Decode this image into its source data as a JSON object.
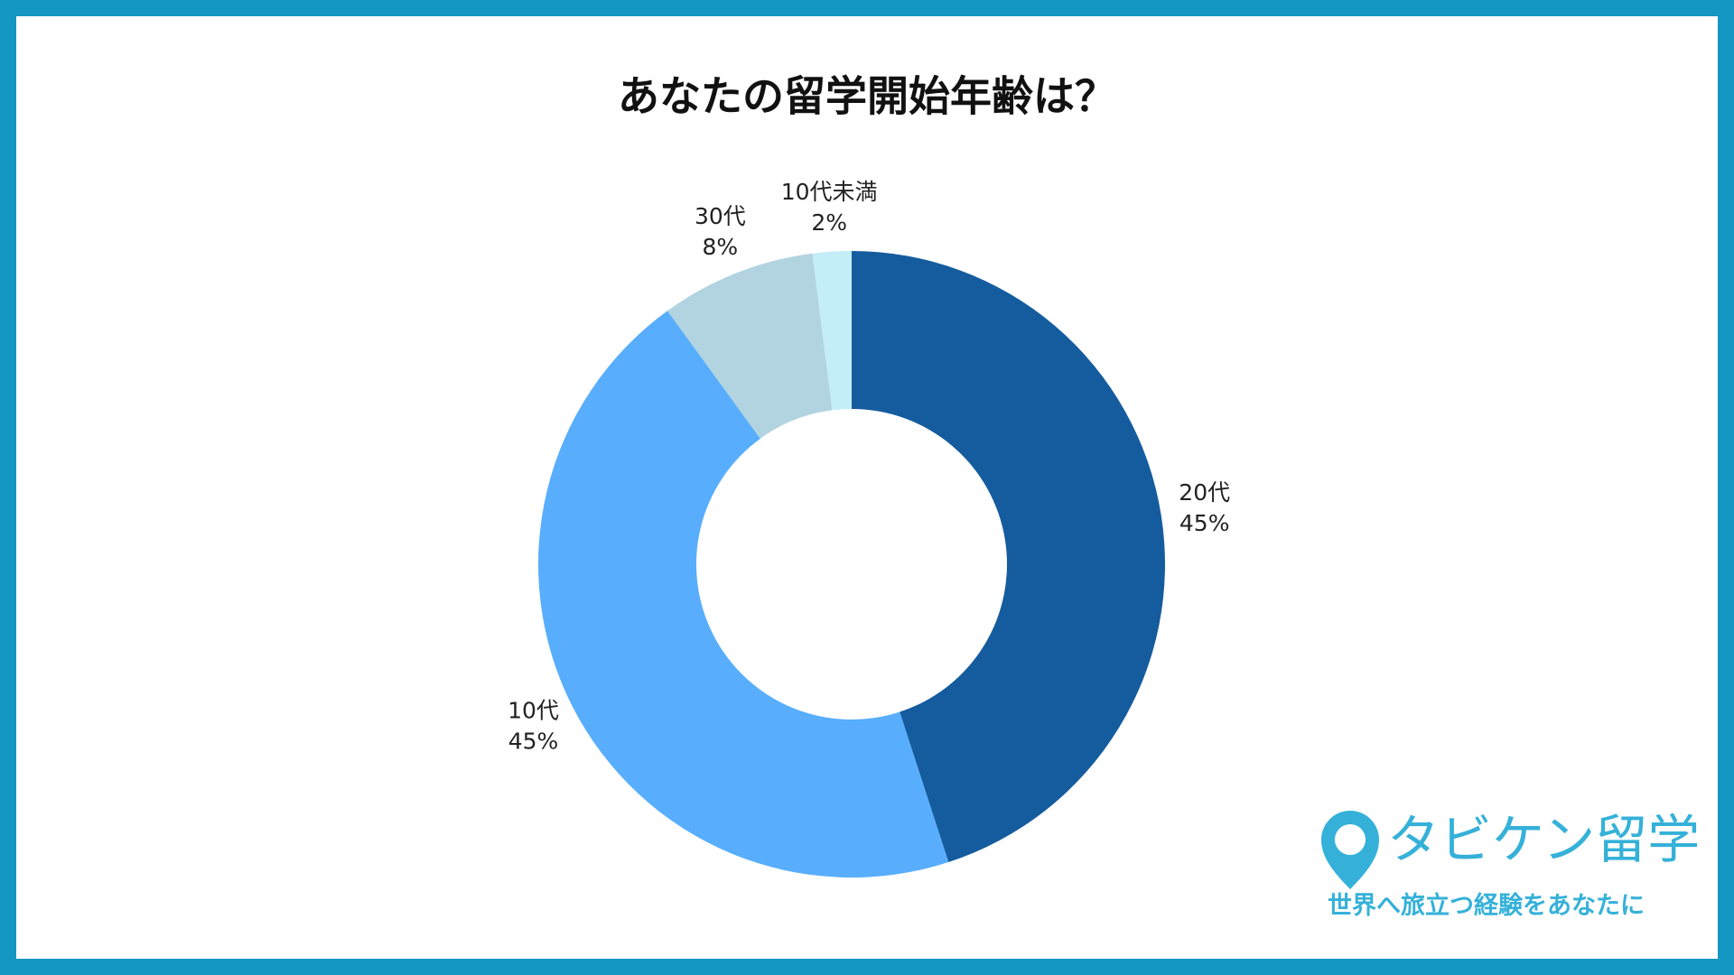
{
  "chart_data": {
    "type": "donut",
    "title": "あなたの留学開始年齢は？",
    "categories": [
      "20代",
      "10代",
      "30代",
      "10代未満"
    ],
    "values": [
      45,
      45,
      8,
      2
    ],
    "value_labels": [
      "45%",
      "45%",
      "8%",
      "2%"
    ],
    "colors": [
      "#155c9e",
      "#58aefc",
      "#b2d4e0",
      "#c3eef8"
    ]
  },
  "logo": {
    "name": "タビケン留学",
    "tagline": "世界へ旅立つ経験をあなたに"
  }
}
